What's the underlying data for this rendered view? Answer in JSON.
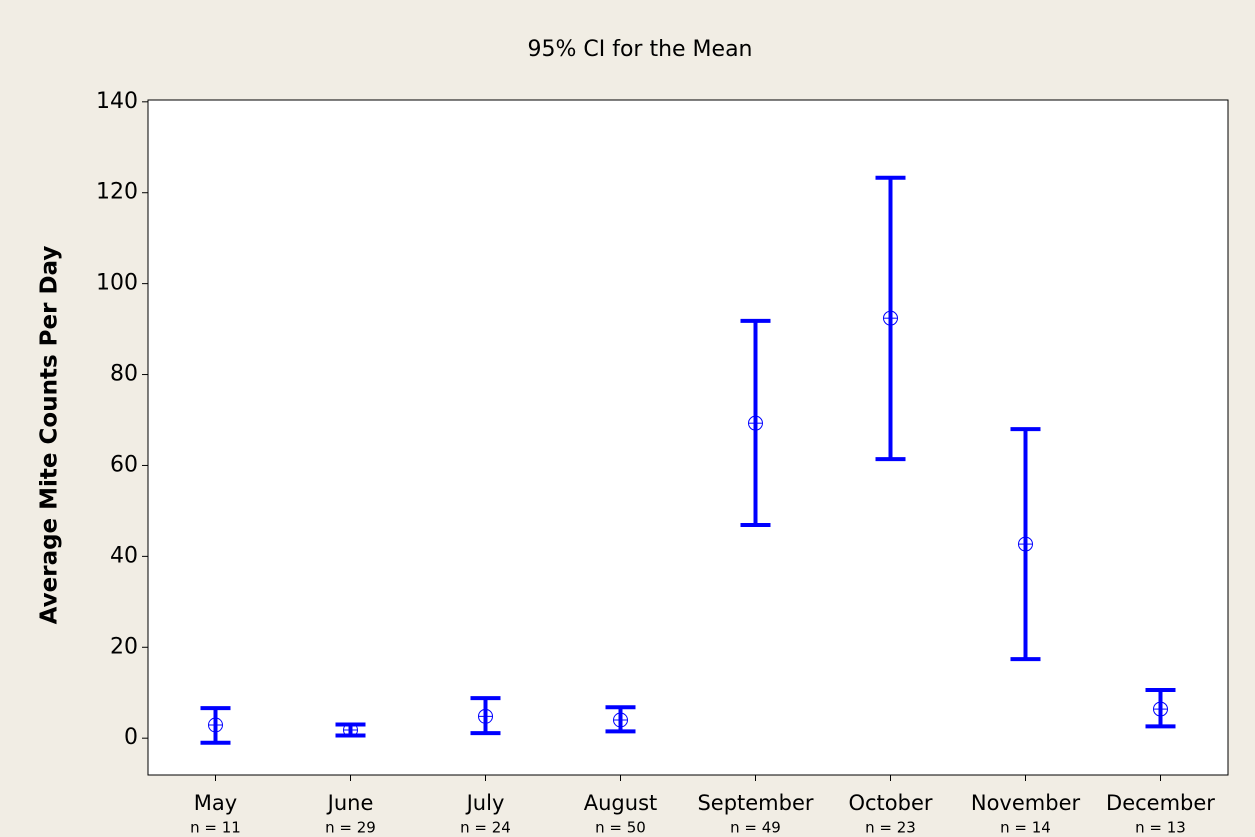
{
  "chart_data": {
    "type": "interval",
    "title": "95% CI for the Mean",
    "y_label": "Average Mite Counts Per Day",
    "categories": [
      "May",
      "June",
      "July",
      "August",
      "September",
      "October",
      "November",
      "December"
    ],
    "n_labels": [
      "n = 11",
      "n = 29",
      "n = 24",
      "n = 50",
      "n = 49",
      "n = 23",
      "n = 14",
      "n = 13"
    ],
    "values": [
      2.9,
      1.8,
      4.8,
      4.0,
      69.3,
      92.4,
      42.7,
      6.4
    ],
    "lower": [
      -1.0,
      0.6,
      1.1,
      1.5,
      46.9,
      61.4,
      17.4,
      2.6
    ],
    "upper": [
      6.6,
      3.0,
      8.8,
      6.8,
      91.8,
      123.3,
      68.0,
      10.6
    ],
    "color": "#0000ff",
    "ylim": [
      -8.1,
      140.4
    ],
    "yticks": [
      0,
      20,
      40,
      60,
      80,
      100,
      120,
      140
    ],
    "grid": false
  }
}
